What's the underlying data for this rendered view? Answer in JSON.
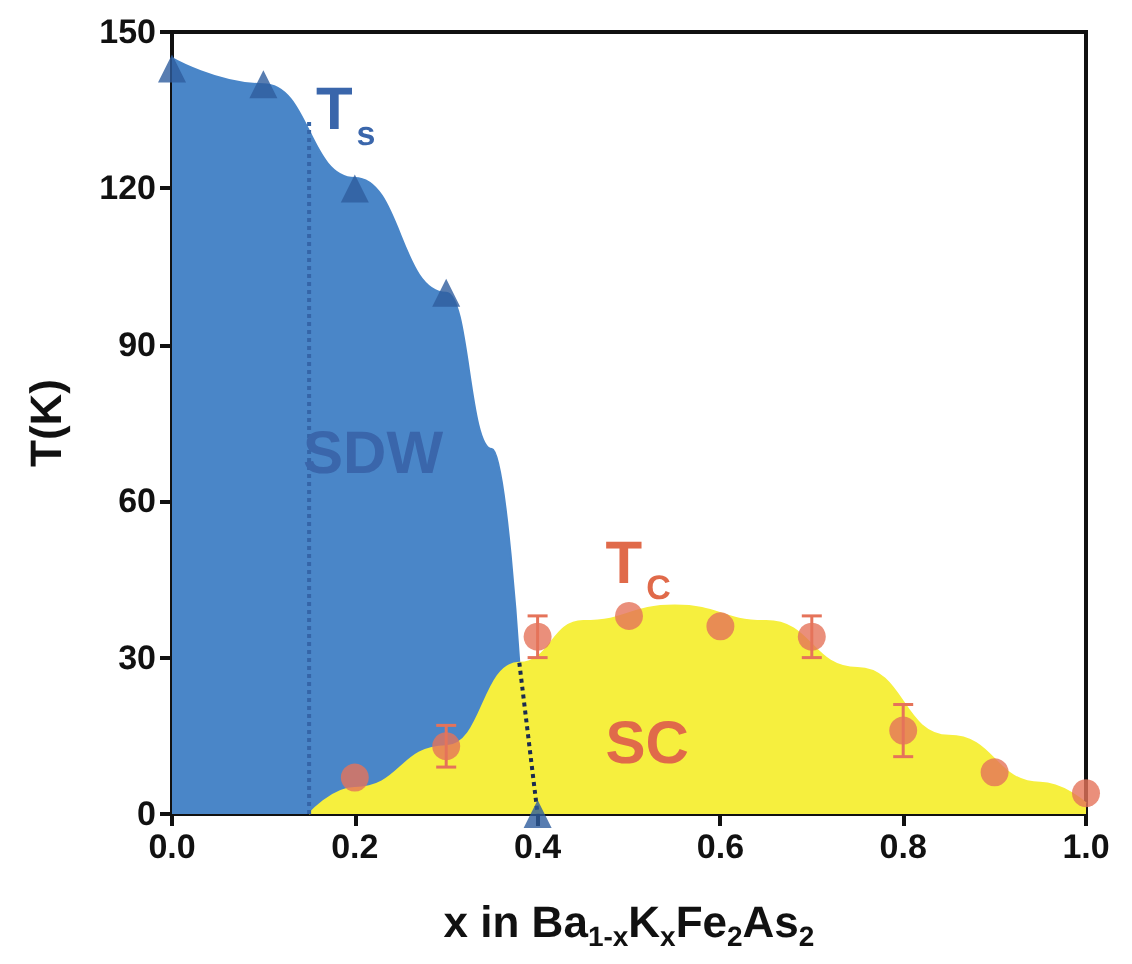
{
  "chart_data": {
    "type": "area",
    "xlabel": "x in Ba$_{1-x}$K$_{x}$Fe$_{2}$As$_{2}$",
    "ylabel": "T(K)",
    "xlim": [
      0,
      1
    ],
    "xticks": [
      {
        "value": 0,
        "label": "0.0"
      },
      0.2,
      0.4,
      0.6,
      0.8,
      {
        "value": 1,
        "label": "1.0"
      }
    ],
    "ylim": [
      0,
      150
    ],
    "yticks": [
      0,
      30,
      60,
      90,
      120,
      150
    ],
    "grid": false,
    "series": [
      {
        "color": "#4a86c8",
        "x": [
          0,
          0.1,
          0.2,
          0.3,
          0.35,
          0.38
        ],
        "values": [
          145,
          140,
          122,
          100,
          70,
          29
        ]
      },
      {
        "color": "#f6ef3e",
        "x": [
          0.15,
          0.2,
          0.3,
          0.38,
          0.45,
          0.55,
          0.65,
          0.75,
          0.85,
          0.95,
          1.0
        ],
        "values": [
          0,
          5,
          13,
          29,
          37,
          40,
          37,
          28,
          15,
          6,
          2
        ]
      },
      {
        "type": "line",
        "color": "#3565a8",
        "line_style": "dotted",
        "marker": "none",
        "x": [
          0.15,
          0.15
        ],
        "values": [
          0,
          133
        ]
      },
      {
        "type": "line",
        "color": "#1a2a50",
        "line_style": "dotted",
        "marker": "none",
        "x": [
          0.38,
          0.4
        ],
        "values": [
          29,
          0
        ]
      },
      {
        "type": "scatter",
        "color": "#2e5c9e",
        "marker": "triangle",
        "x": [
          0,
          0.1,
          0.2,
          0.3,
          0.4
        ],
        "values": [
          143,
          140,
          120,
          100,
          0
        ]
      },
      {
        "type": "scatter",
        "color": "#e5735a",
        "marker": "circle",
        "x": [
          0.2,
          0.3,
          0.4,
          0.5,
          0.6,
          0.7,
          0.8,
          0.9,
          1.0
        ],
        "values": [
          7,
          13,
          34,
          38,
          36,
          34,
          16,
          8,
          4
        ],
        "errors": [
          null,
          4,
          4,
          null,
          null,
          4,
          5,
          null,
          null
        ]
      }
    ],
    "annotations": [
      "T$_{s}$",
      "SDW",
      "T$_{C}$",
      "SC"
    ]
  }
}
